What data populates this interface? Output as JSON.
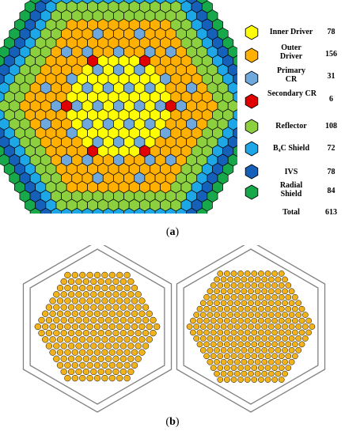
{
  "panel_a": {
    "caption_open": "(",
    "caption_letter": "a",
    "caption_close": ")",
    "colors": {
      "inner_driver": "#ffff00",
      "outer_driver": "#ffb000",
      "primary_cr": "#6fa8dc",
      "secondary_cr": "#e00000",
      "reflector": "#8ccf3f",
      "b4c_shield": "#1ea7e6",
      "ivs": "#1560b8",
      "radial_shield": "#16a84a"
    },
    "legend": [
      {
        "key": "inner_driver",
        "label": "Inner Driver",
        "count": "78",
        "icon": "hexagon-icon"
      },
      {
        "key": "outer_driver",
        "label": "Outer Driver",
        "count": "156",
        "icon": "hexagon-icon"
      },
      {
        "key": "primary_cr",
        "label": "Primary CR",
        "count": "31",
        "icon": "hexagon-icon"
      },
      {
        "key": "secondary_cr",
        "label": "Secondary CR",
        "count": "6",
        "icon": "hexagon-icon"
      },
      {
        "key": "reflector",
        "label": "Reflector",
        "count": "108",
        "icon": "hexagon-icon"
      },
      {
        "key": "b4c_shield",
        "label": "B₄C Shield",
        "count": "72",
        "icon": "hexagon-icon"
      },
      {
        "key": "ivs",
        "label": "IVS",
        "count": "78",
        "icon": "hexagon-icon"
      },
      {
        "key": "radial_shield",
        "label": "Radial Shield",
        "count": "84",
        "icon": "hexagon-icon"
      },
      {
        "key": "total",
        "label": "Total",
        "count": "613"
      }
    ]
  },
  "panel_b": {
    "caption_open": "(",
    "caption_letter": "b",
    "caption_close": ")",
    "pin_fill": "#f2b21b",
    "duct_stroke": "#808080"
  }
}
